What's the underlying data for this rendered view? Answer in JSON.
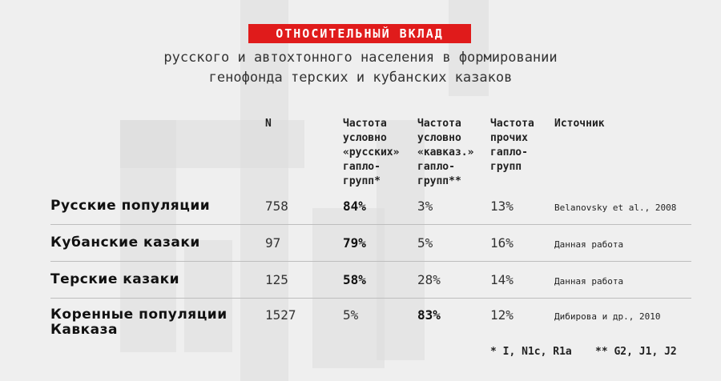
{
  "badge": "ОТНОСИТЕЛЬНЫЙ ВКЛАД",
  "subtitle": {
    "line1": "русского и автохтонного населения в формировании",
    "line2": "генофонда терских и кубанских казаков"
  },
  "headers": {
    "n": "N",
    "russian": [
      "Частота",
      "условно",
      "«русских»",
      "гапло-",
      "групп*"
    ],
    "caucasian": [
      "Частота",
      "условно",
      "«кавказ.»",
      "гапло-",
      "групп**"
    ],
    "other": [
      "Частота",
      "прочих",
      "гапло-",
      "групп"
    ],
    "source": "Источник"
  },
  "rows": [
    {
      "label": [
        "Русские популяции"
      ],
      "n": "758",
      "russian": "84%",
      "caucasian": "3%",
      "other": "13%",
      "source": "Belanovsky et al., 2008",
      "bold": "russian"
    },
    {
      "label": [
        "Кубанские казаки"
      ],
      "n": "97",
      "russian": "79%",
      "caucasian": "5%",
      "other": "16%",
      "source": "Данная работа",
      "bold": "russian"
    },
    {
      "label": [
        "Терские казаки"
      ],
      "n": "125",
      "russian": "58%",
      "caucasian": "28%",
      "other": "14%",
      "source": "Данная работа",
      "bold": "russian"
    },
    {
      "label": [
        "Коренные популяции",
        "Кавказа"
      ],
      "n": "1527",
      "russian": "5%",
      "caucasian": "83%",
      "other": "12%",
      "source": "Дибирова и др., 2010",
      "bold": "caucasian"
    }
  ],
  "notes": {
    "n1": "* I, N1c, R1a",
    "n2": "** G2, J1, J2"
  }
}
